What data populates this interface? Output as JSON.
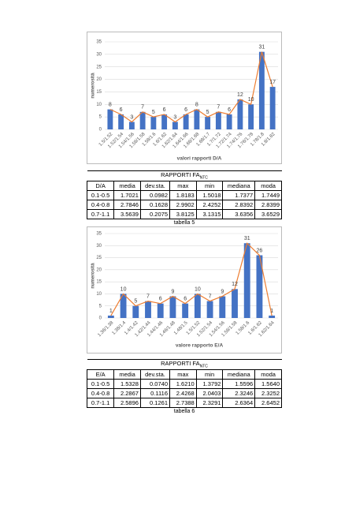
{
  "chart_data": [
    {
      "type": "bar",
      "x_label": "valori rapporti D/A",
      "y_label": "numerosità",
      "categories": [
        "1.5/1.52",
        "1.52/1.54",
        "1.54/1.56",
        "1.56/1.58",
        "1.58/1.6",
        "1.6/1.62",
        "1.62/1.64",
        "1.64/1.66",
        "1.66/1.68",
        "1.68/1.7",
        "1.7/1.72",
        "1.72/1.74",
        "1.74/1.76",
        "1.76/1.78",
        "1.78/1.8",
        "1.8/1.82"
      ],
      "values": [
        8,
        6,
        3,
        7,
        5,
        6,
        3,
        6,
        8,
        5,
        7,
        6,
        12,
        10,
        31,
        17
      ],
      "color": "#4472c4",
      "line_color": "#ed7d31",
      "ylim": [
        0,
        35
      ],
      "yticks": [
        0,
        5,
        10,
        15,
        20,
        25,
        30,
        35
      ],
      "grid": true
    },
    {
      "type": "bar",
      "x_label": "valore rapporto E/A",
      "y_label": "numerosità",
      "categories": [
        "1.36/1.38",
        "1.38/1.4",
        "1.4/1.42",
        "1.42/1.44",
        "1.44/1.46",
        "1.46/1.48",
        "1.48/1.5",
        "1.5/1.52",
        "1.52/1.54",
        "1.54/1.56",
        "1.56/1.58",
        "1.58/1.6",
        "1.6/1.62",
        "1.62/1.64"
      ],
      "values": [
        1,
        10,
        5,
        7,
        6,
        9,
        6,
        10,
        7,
        9,
        12,
        31,
        26,
        1
      ],
      "color": "#4472c4",
      "line_color": "#ed7d31",
      "ylim": [
        0,
        35
      ],
      "yticks": [
        0,
        5,
        10,
        15,
        20,
        25,
        30,
        35
      ],
      "grid": true
    }
  ],
  "tables": [
    {
      "title": "RAPPORTI FA",
      "title_sub": "NTC",
      "caption": "tabella 5",
      "header": [
        "D/A",
        "media",
        "dev.sta.",
        "max",
        "min",
        "mediana",
        "moda"
      ],
      "rows": [
        [
          "0.1-0.5",
          "1.7021",
          "0.0982",
          "1.8183",
          "1.5018",
          "1.7377",
          "1.7449"
        ],
        [
          "0.4-0.8",
          "2.7846",
          "0.1628",
          "2.9902",
          "2.4252",
          "2.8392",
          "2.8399"
        ],
        [
          "0.7-1.1",
          "3.5639",
          "0.2075",
          "3.8125",
          "3.1315",
          "3.6356",
          "3.6529"
        ]
      ]
    },
    {
      "title": "RAPPORTI FA",
      "title_sub": "NTC",
      "caption": "tabella 6",
      "header": [
        "E/A",
        "media",
        "dev.sta.",
        "max",
        "min",
        "mediana",
        "moda"
      ],
      "rows": [
        [
          "0.1-0.5",
          "1.5328",
          "0.0740",
          "1.6210",
          "1.3792",
          "1.5596",
          "1.5640"
        ],
        [
          "0.4-0.8",
          "2.2867",
          "0.1116",
          "2.4268",
          "2.0403",
          "2.3246",
          "2.3252"
        ],
        [
          "0.7-1.1",
          "2.5896",
          "0.1261",
          "2.7388",
          "2.3291",
          "2.6364",
          "2.6452"
        ]
      ]
    }
  ]
}
